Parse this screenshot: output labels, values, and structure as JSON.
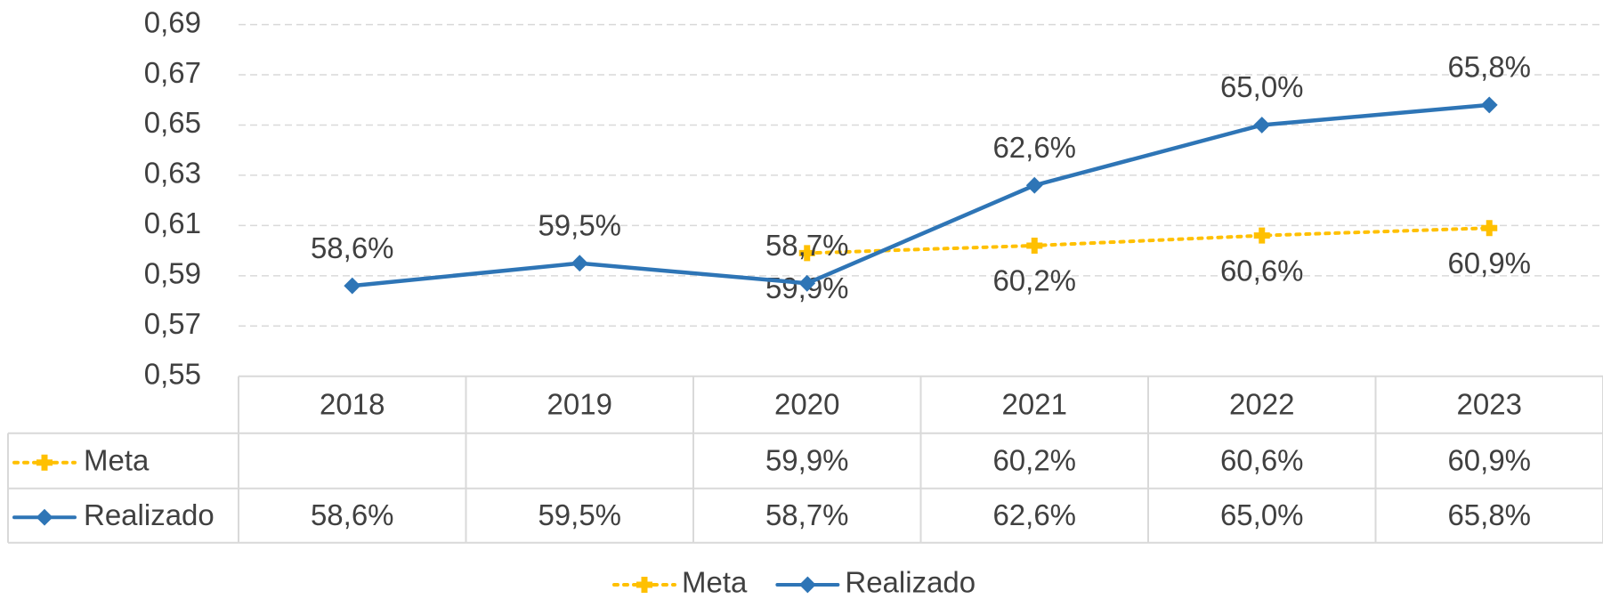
{
  "chart_data": {
    "type": "line",
    "categories": [
      "2018",
      "2019",
      "2020",
      "2021",
      "2022",
      "2023"
    ],
    "series": [
      {
        "name": "Meta",
        "color": "#FFC000",
        "line_style": "dotted",
        "marker": "plus",
        "values": [
          null,
          null,
          0.599,
          0.602,
          0.606,
          0.609
        ],
        "value_labels": [
          null,
          null,
          "59,9%",
          "60,2%",
          "60,6%",
          "60,9%"
        ]
      },
      {
        "name": "Realizado",
        "color": "#2E75B6",
        "line_style": "solid",
        "marker": "diamond",
        "values": [
          0.586,
          0.595,
          0.587,
          0.626,
          0.65,
          0.658
        ],
        "value_labels": [
          "58,6%",
          "59,5%",
          "58,7%",
          "62,6%",
          "65,0%",
          "65,8%"
        ]
      }
    ],
    "ylim": [
      0.55,
      0.69
    ],
    "yticks": [
      {
        "value": 0.55,
        "label": "0,55"
      },
      {
        "value": 0.57,
        "label": "0,57"
      },
      {
        "value": 0.59,
        "label": "0,59"
      },
      {
        "value": 0.61,
        "label": "0,61"
      },
      {
        "value": 0.63,
        "label": "0,63"
      },
      {
        "value": 0.65,
        "label": "0,65"
      },
      {
        "value": 0.67,
        "label": "0,67"
      },
      {
        "value": 0.69,
        "label": "0,69"
      }
    ],
    "grid": true,
    "legend": "bottom",
    "data_table": true
  }
}
